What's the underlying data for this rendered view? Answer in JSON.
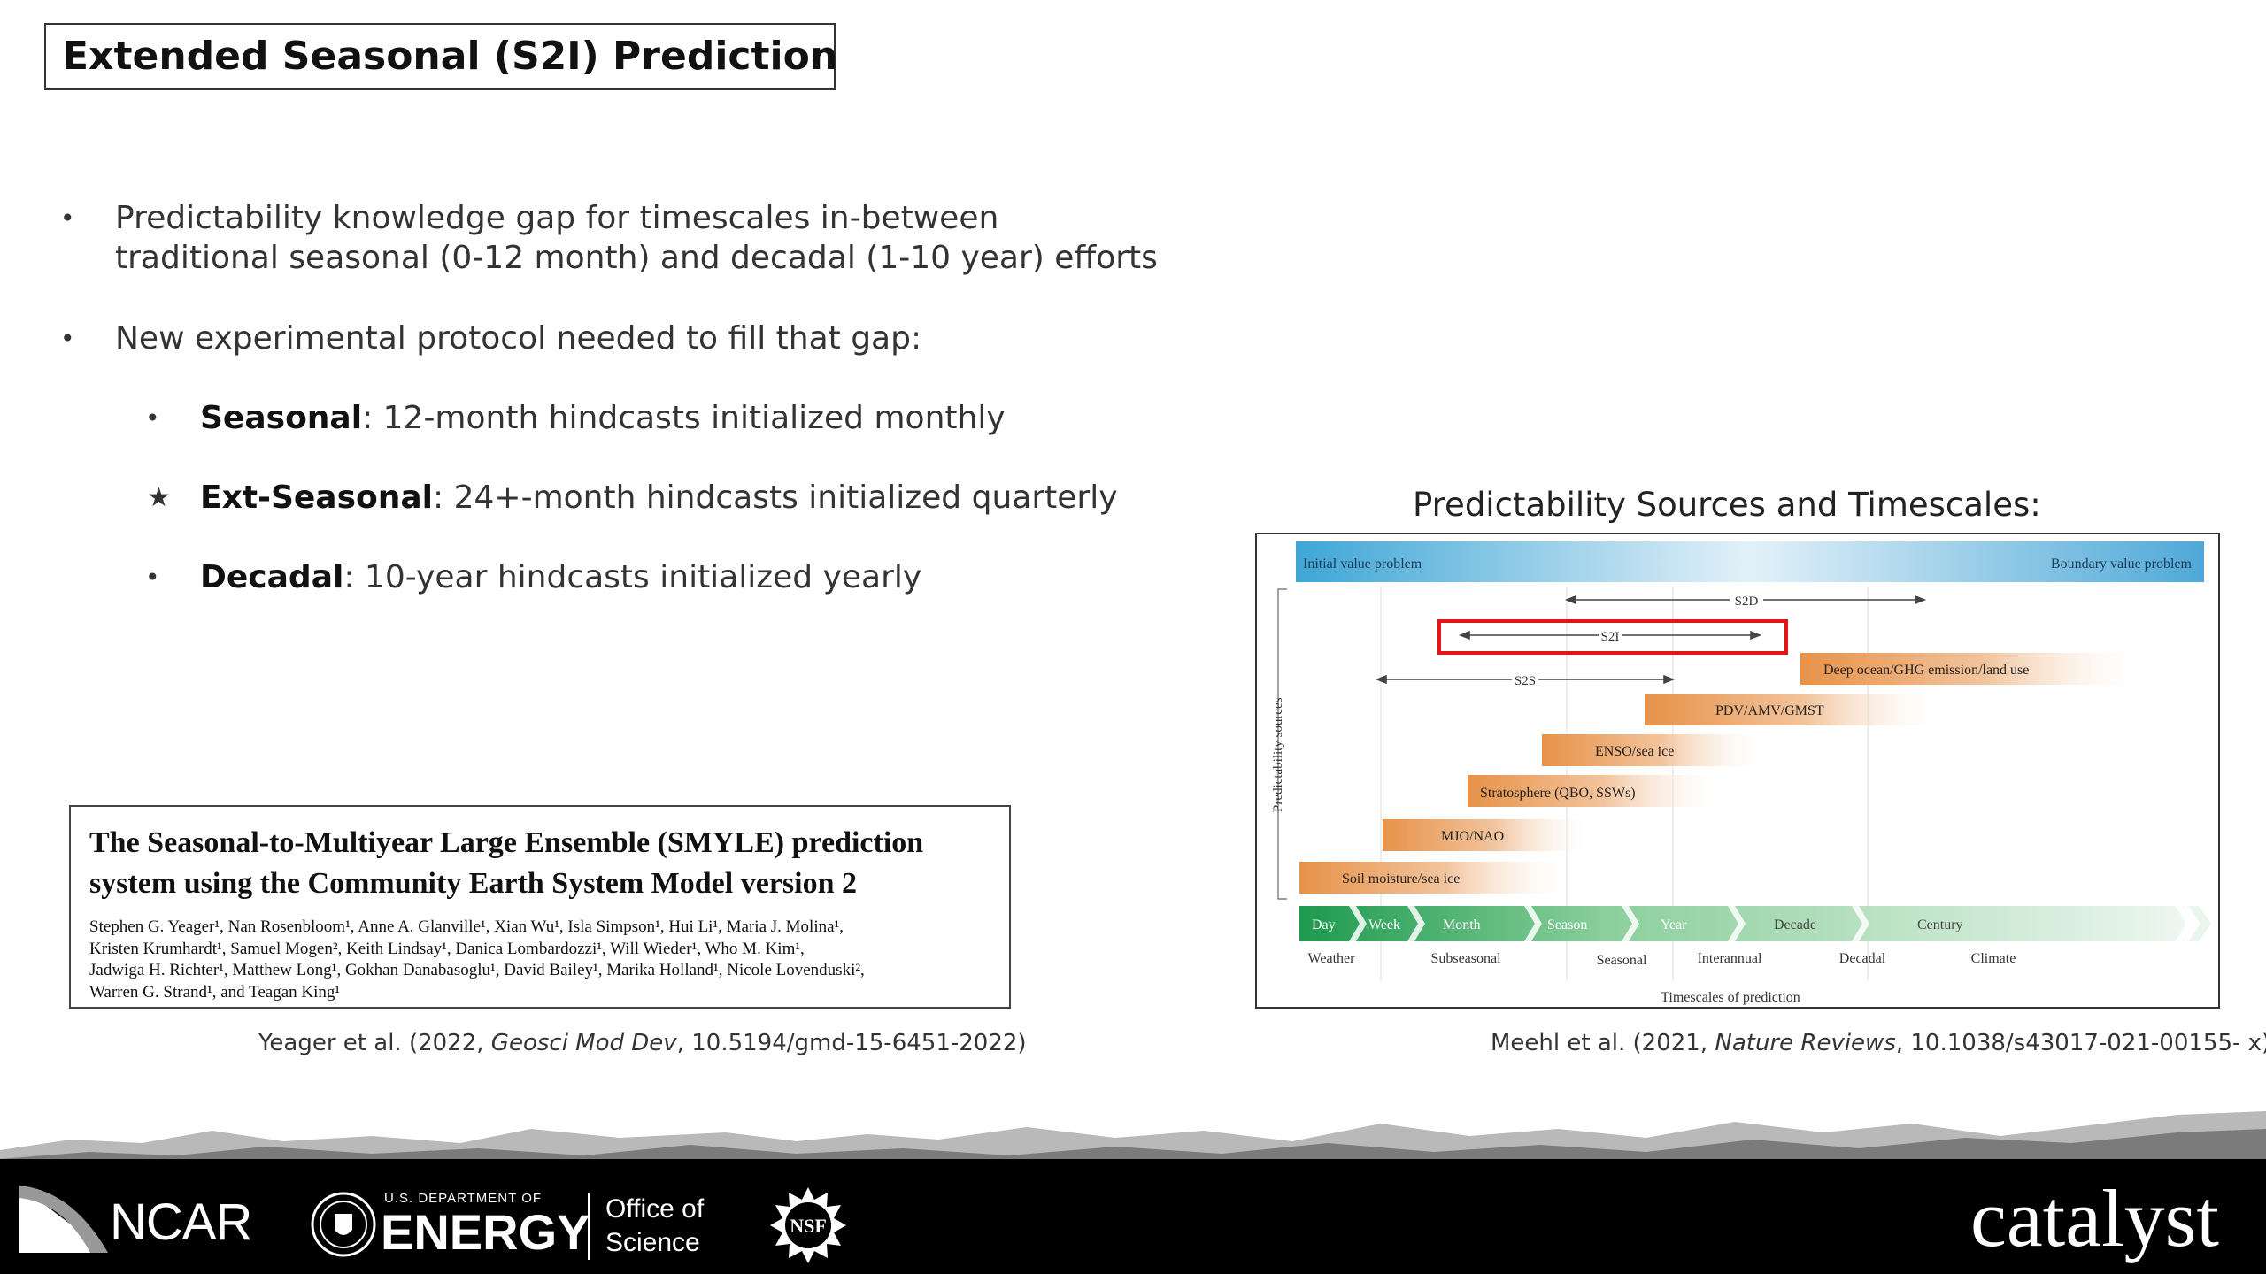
{
  "slide": {
    "title": "Extended Seasonal (S2I) Prediction",
    "bullets": [
      {
        "marker": "•",
        "line1": "Predictability knowledge gap for timescales in-between",
        "line2": "traditional seasonal (0-12 month) and decadal (1-10 year) efforts"
      },
      {
        "marker": "•",
        "text": "New experimental protocol needed to fill that gap:"
      }
    ],
    "sub_bullets": [
      {
        "marker": "•",
        "bold": "Seasonal",
        "rest": ":  12-month hindcasts initialized monthly"
      },
      {
        "marker": "★",
        "bold": "Ext-Seasonal",
        "rest": ": 24+-month hindcasts initialized quarterly"
      },
      {
        "marker": "•",
        "bold": "Decadal",
        "rest": ":  10-year hindcasts initialized yearly"
      }
    ]
  },
  "paper": {
    "title_line1": "The Seasonal-to-Multiyear Large Ensemble (SMYLE) prediction",
    "title_line2": "system using the Community Earth System Model version 2",
    "authors_lines": [
      "Stephen G. Yeager¹, Nan Rosenbloom¹, Anne A. Glanville¹, Xian Wu¹, Isla Simpson¹, Hui Li¹, Maria J. Molina¹,",
      "Kristen Krumhardt¹, Samuel Mogen², Keith Lindsay¹, Danica Lombardozzi¹, Will Wieder¹, Who M. Kim¹,",
      "Jadwiga H. Richter¹, Matthew Long¹, Gokhan Danabasoglu¹, David Bailey¹, Marika Holland¹, Nicole Lovenduski²,",
      "Warren G. Strand¹, and Teagan King¹"
    ],
    "caption_pre": "Yeager et al. (2022, ",
    "caption_italic": "Geosci Mod Dev",
    "caption_post": ", 10.5194/gmd-15-6451-2022)"
  },
  "figure": {
    "heading": "Predictability Sources and Timescales:",
    "top_bar_left": "Initial value problem",
    "top_bar_right": "Boundary value problem",
    "y_axis_label": "Predictability sources",
    "x_axis_label": "Timescales of prediction",
    "ranges": [
      {
        "label": "S2D"
      },
      {
        "label": "S2I",
        "highlighted": true
      },
      {
        "label": "S2S"
      }
    ],
    "sources": [
      "Deep ocean/GHG emission/land use",
      "PDV/AMV/GMST",
      "ENSO/sea ice",
      "Stratosphere (QBO, SSWs)",
      "MJO/NAO",
      "Soil moisture/sea ice"
    ],
    "timeline": [
      "Day",
      "Week",
      "Month",
      "Season",
      "Year",
      "Decade",
      "Century"
    ],
    "categories": [
      "Weather",
      "Subseasonal",
      "Seasonal",
      "Interannual",
      "Decadal",
      "Climate"
    ],
    "highlight_color": "#e0161b",
    "caption_pre": "Meehl et al. (2021, ",
    "caption_italic": "Nature Reviews",
    "caption_post": ", 10.1038/s43017-021-00155- x)"
  },
  "footer": {
    "ncar": "NCAR",
    "doe_small": "U.S. DEPARTMENT OF",
    "doe_big": "ENERGY",
    "office_line1": "Office of",
    "office_line2": "Science",
    "nsf": "NSF",
    "catalyst": "catalyst"
  }
}
